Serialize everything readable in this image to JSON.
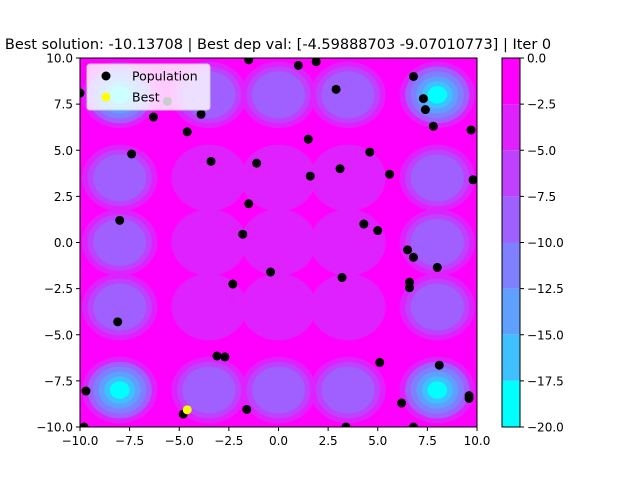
{
  "chart_data": {
    "type": "scatter",
    "title": "Best solution: -10.13708 | Best dep val: [-4.59888703 -9.07010773] | Iter 0",
    "xlim": [
      -10,
      10
    ],
    "ylim": [
      -10,
      10
    ],
    "x_ticks": [
      "−10.0",
      "−7.5",
      "−5.0",
      "−2.5",
      "0.0",
      "2.5",
      "5.0",
      "7.5",
      "10.0"
    ],
    "y_ticks": [
      "−10.0",
      "−7.5",
      "−5.0",
      "−2.5",
      "0.0",
      "2.5",
      "5.0",
      "7.5",
      "10.0"
    ],
    "legend": {
      "placement": "upper-left",
      "items": [
        {
          "label": "Population",
          "color": "#000000"
        },
        {
          "label": "Best",
          "color": "#ffff00"
        }
      ]
    },
    "colorbar": {
      "range": [
        -20,
        0
      ],
      "ticks": [
        "0.0",
        "−2.5",
        "−5.0",
        "−7.5",
        "−10.0",
        "−12.5",
        "−15.0",
        "−17.5",
        "−20.0"
      ],
      "colormap": "cool",
      "bands": [
        {
          "from": -2.5,
          "to": 0,
          "color": "#ff00ff"
        },
        {
          "from": -5,
          "to": -2.5,
          "color": "#df20ff"
        },
        {
          "from": -7.5,
          "to": -5,
          "color": "#bf40ff"
        },
        {
          "from": -10,
          "to": -7.5,
          "color": "#9f60ff"
        },
        {
          "from": -12.5,
          "to": -10,
          "color": "#7f80ff"
        },
        {
          "from": -15,
          "to": -12.5,
          "color": "#5fa0ff"
        },
        {
          "from": -17.5,
          "to": -15,
          "color": "#3fc0ff"
        },
        {
          "from": -20,
          "to": -17.5,
          "color": "#00ffff"
        }
      ]
    },
    "population": [
      [
        -10.0,
        8.1
      ],
      [
        -5.6,
        7.65
      ],
      [
        -6.3,
        6.8
      ],
      [
        -4.6,
        6.0
      ],
      [
        -3.9,
        6.95
      ],
      [
        -7.4,
        4.8
      ],
      [
        -1.5,
        9.9
      ],
      [
        1.0,
        9.6
      ],
      [
        1.9,
        9.8
      ],
      [
        2.9,
        8.3
      ],
      [
        6.8,
        9.0
      ],
      [
        7.3,
        7.8
      ],
      [
        7.4,
        7.2
      ],
      [
        7.8,
        6.3
      ],
      [
        9.7,
        6.1
      ],
      [
        9.8,
        3.4
      ],
      [
        1.5,
        5.6
      ],
      [
        1.6,
        3.6
      ],
      [
        3.1,
        4.0
      ],
      [
        4.6,
        4.9
      ],
      [
        5.6,
        3.7
      ],
      [
        -3.4,
        4.4
      ],
      [
        -1.1,
        4.3
      ],
      [
        -1.5,
        2.1
      ],
      [
        -8.0,
        1.2
      ],
      [
        -1.8,
        0.45
      ],
      [
        4.3,
        1.0
      ],
      [
        5.0,
        0.65
      ],
      [
        6.5,
        -0.4
      ],
      [
        6.8,
        -0.8
      ],
      [
        8.0,
        -1.35
      ],
      [
        -0.4,
        -1.6
      ],
      [
        -2.3,
        -2.25
      ],
      [
        3.2,
        -1.9
      ],
      [
        6.6,
        -2.15
      ],
      [
        6.6,
        -2.45
      ],
      [
        -8.1,
        -4.3
      ],
      [
        -3.1,
        -6.15
      ],
      [
        -2.7,
        -6.2
      ],
      [
        5.1,
        -6.5
      ],
      [
        8.1,
        -6.65
      ],
      [
        -9.7,
        -8.05
      ],
      [
        6.2,
        -8.7
      ],
      [
        9.6,
        -8.3
      ],
      [
        9.6,
        -8.45
      ],
      [
        -1.6,
        -9.05
      ],
      [
        -4.8,
        -9.3
      ],
      [
        -9.8,
        -10.0
      ],
      [
        3.4,
        -10.0
      ],
      [
        6.8,
        -10.0
      ]
    ],
    "best": [
      -4.59888703,
      -9.07010773
    ]
  }
}
